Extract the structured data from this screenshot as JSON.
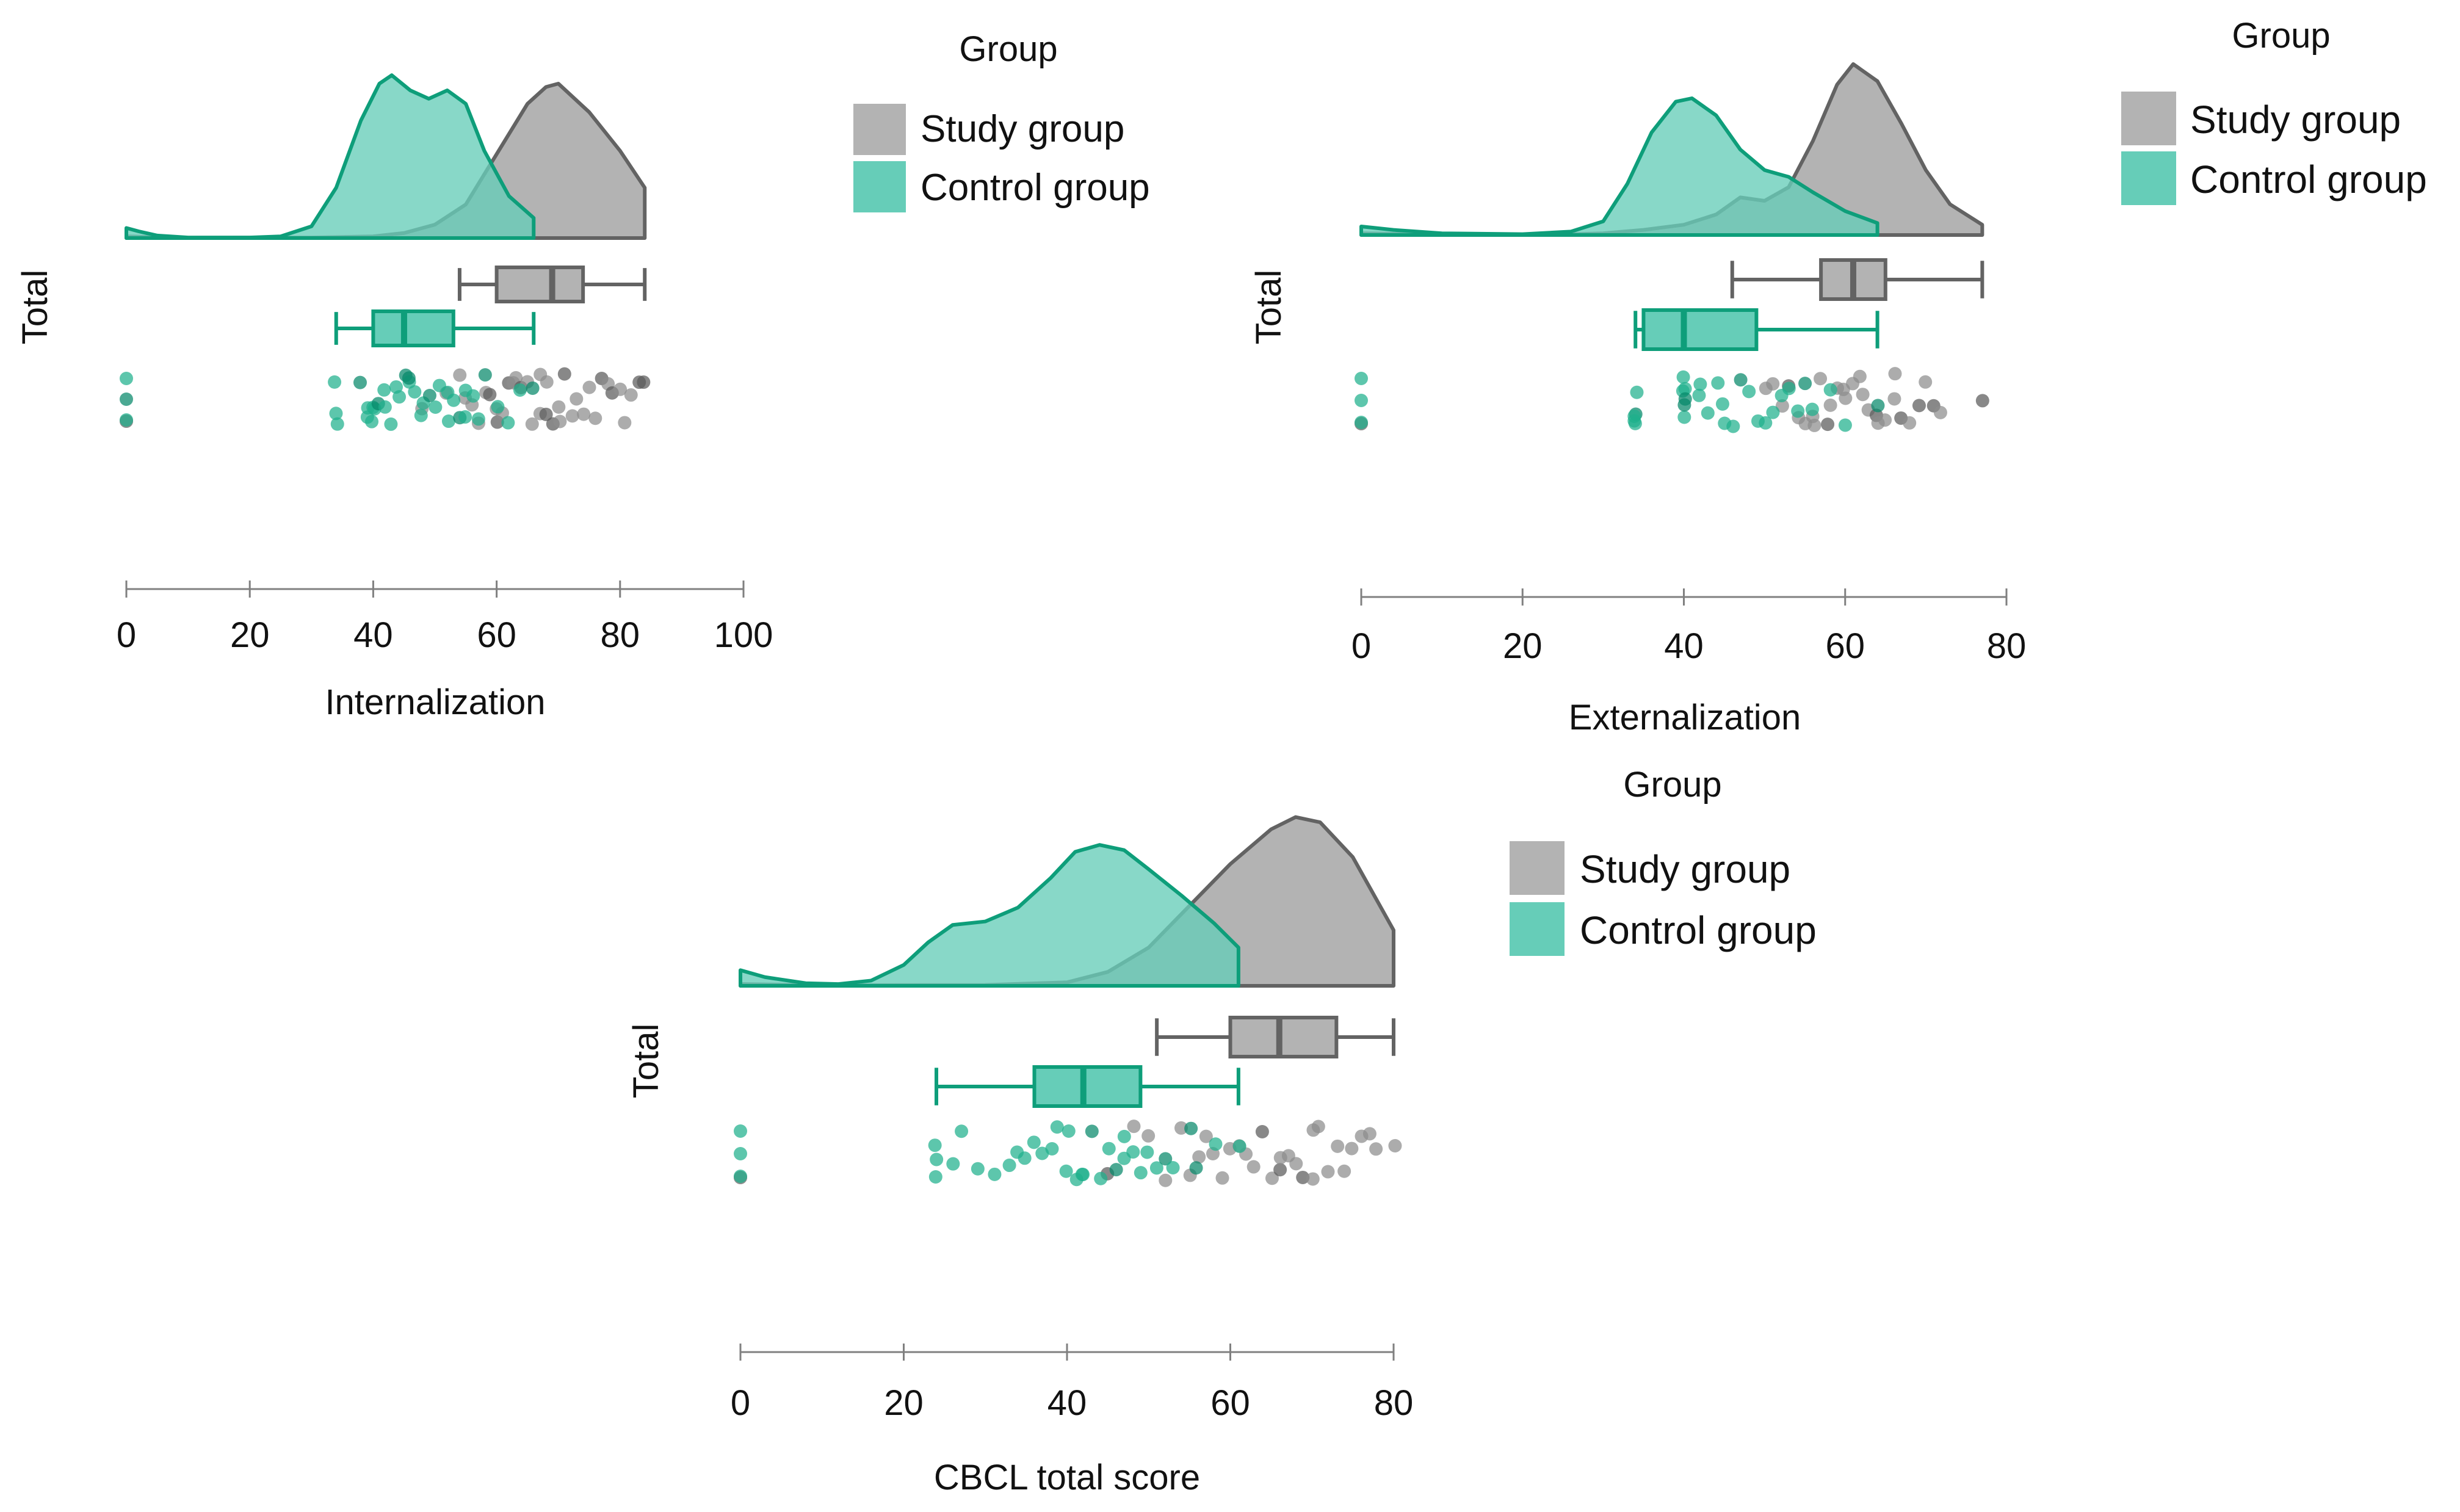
{
  "colors": {
    "study": "#b3b3b3",
    "study_line": "#636363",
    "study_point": "#8c8c8c",
    "study_point_dark": "#5a5a5a",
    "control": "#66cdb8",
    "control_line": "#0e9e7a",
    "control_point": "#1fb08c",
    "control_point_dark": "#05886a",
    "axis": "#808080",
    "text": "#111111"
  },
  "chart_data": [
    {
      "type": "raincloud",
      "id": "internalization",
      "xlabel": "Internalization",
      "ylabel": "Total",
      "xlim": [
        0,
        100
      ],
      "xticks": [
        0,
        20,
        40,
        60,
        80,
        100
      ],
      "legend": {
        "title": "Group",
        "placement": "right",
        "entries": [
          "Study group",
          "Control group"
        ]
      },
      "series": [
        {
          "name": "Study group",
          "density": [
            [
              0,
              0.01
            ],
            [
              5,
              0.005
            ],
            [
              10,
              0.002
            ],
            [
              30,
              0.003
            ],
            [
              40,
              0.01
            ],
            [
              45,
              0.03
            ],
            [
              50,
              0.08
            ],
            [
              55,
              0.2
            ],
            [
              60,
              0.5
            ],
            [
              65,
              0.8
            ],
            [
              68,
              0.9
            ],
            [
              70,
              0.92
            ],
            [
              75,
              0.75
            ],
            [
              80,
              0.52
            ],
            [
              84,
              0.3
            ]
          ],
          "range": [
            0,
            84
          ],
          "box": {
            "whisker_low": 54,
            "q1": 60,
            "median": 69,
            "q3": 74,
            "whisker_high": 84
          },
          "points": [
            0,
            0,
            0,
            48,
            52,
            54,
            55,
            56,
            57,
            58,
            59,
            60,
            60,
            61,
            62,
            63,
            63,
            64,
            65,
            66,
            67,
            67,
            68,
            68,
            69,
            70,
            70,
            71,
            72,
            73,
            74,
            75,
            76,
            77,
            78,
            79,
            80,
            81,
            82,
            83,
            84
          ]
        },
        {
          "name": "Control group",
          "density": [
            [
              0,
              0.06
            ],
            [
              2,
              0.04
            ],
            [
              5,
              0.015
            ],
            [
              10,
              0.003
            ],
            [
              20,
              0.003
            ],
            [
              25,
              0.01
            ],
            [
              30,
              0.07
            ],
            [
              34,
              0.3
            ],
            [
              38,
              0.7
            ],
            [
              41,
              0.92
            ],
            [
              43,
              0.97
            ],
            [
              46,
              0.88
            ],
            [
              49,
              0.83
            ],
            [
              52,
              0.88
            ],
            [
              55,
              0.8
            ],
            [
              58,
              0.52
            ],
            [
              62,
              0.25
            ],
            [
              66,
              0.12
            ]
          ],
          "range": [
            0,
            66
          ],
          "box": {
            "whisker_low": 34,
            "q1": 40,
            "median": 45,
            "q3": 53,
            "whisker_high": 66
          },
          "points": [
            0,
            0,
            0,
            34,
            34,
            34,
            38,
            39,
            39,
            40,
            40,
            40,
            41,
            42,
            42,
            43,
            44,
            44,
            45,
            46,
            46,
            47,
            48,
            48,
            49,
            50,
            51,
            52,
            52,
            53,
            54,
            55,
            55,
            56,
            57,
            58,
            60,
            62,
            64,
            66
          ]
        }
      ]
    },
    {
      "type": "raincloud",
      "id": "externalization",
      "xlabel": "Externalization",
      "ylabel": "Total",
      "xlim": [
        0,
        80
      ],
      "xticks": [
        0,
        20,
        40,
        60,
        80
      ],
      "legend": {
        "title": "Group",
        "placement": "right",
        "entries": [
          "Study group",
          "Control group"
        ]
      },
      "series": [
        {
          "name": "Study group",
          "density": [
            [
              0,
              0.01
            ],
            [
              10,
              0.003
            ],
            [
              25,
              0.003
            ],
            [
              30,
              0.01
            ],
            [
              35,
              0.03
            ],
            [
              40,
              0.06
            ],
            [
              44,
              0.12
            ],
            [
              47,
              0.22
            ],
            [
              50,
              0.2
            ],
            [
              53,
              0.28
            ],
            [
              56,
              0.55
            ],
            [
              59,
              0.88
            ],
            [
              61,
              1.0
            ],
            [
              64,
              0.9
            ],
            [
              67,
              0.65
            ],
            [
              70,
              0.38
            ],
            [
              73,
              0.18
            ],
            [
              77,
              0.06
            ]
          ],
          "range": [
            0,
            77
          ],
          "box": {
            "whisker_low": 46,
            "q1": 57,
            "median": 61,
            "q3": 65,
            "whisker_high": 77
          },
          "points": [
            0,
            0,
            0,
            50,
            51,
            52,
            53,
            54,
            55,
            56,
            56,
            57,
            58,
            58,
            59,
            60,
            60,
            61,
            62,
            62,
            63,
            64,
            64,
            65,
            66,
            66,
            67,
            68,
            69,
            70,
            71,
            72,
            77
          ]
        },
        {
          "name": "Control group",
          "density": [
            [
              0,
              0.05
            ],
            [
              4,
              0.03
            ],
            [
              10,
              0.01
            ],
            [
              20,
              0.005
            ],
            [
              26,
              0.02
            ],
            [
              30,
              0.08
            ],
            [
              33,
              0.3
            ],
            [
              36,
              0.6
            ],
            [
              39,
              0.78
            ],
            [
              41,
              0.8
            ],
            [
              44,
              0.7
            ],
            [
              47,
              0.5
            ],
            [
              50,
              0.38
            ],
            [
              53,
              0.34
            ],
            [
              56,
              0.25
            ],
            [
              60,
              0.14
            ],
            [
              64,
              0.07
            ]
          ],
          "range": [
            0,
            64
          ],
          "box": {
            "whisker_low": 34,
            "q1": 35,
            "median": 40,
            "q3": 49,
            "whisker_high": 64
          },
          "points": [
            0,
            0,
            0,
            34,
            34,
            34,
            34,
            34,
            40,
            40,
            40,
            40,
            40,
            40,
            42,
            42,
            43,
            44,
            45,
            45,
            46,
            47,
            48,
            49,
            50,
            51,
            52,
            53,
            54,
            55,
            56,
            58,
            60,
            64
          ]
        }
      ]
    },
    {
      "type": "raincloud",
      "id": "cbcl_total",
      "xlabel": "CBCL total score",
      "ylabel": "Total",
      "xlim": [
        0,
        80
      ],
      "xticks": [
        0,
        20,
        40,
        60,
        80
      ],
      "legend": {
        "title": "Group",
        "placement": "right",
        "entries": [
          "Study group",
          "Control group"
        ]
      },
      "series": [
        {
          "name": "Study group",
          "density": [
            [
              0,
              0.01
            ],
            [
              10,
              0.003
            ],
            [
              30,
              0.005
            ],
            [
              40,
              0.02
            ],
            [
              45,
              0.08
            ],
            [
              50,
              0.22
            ],
            [
              55,
              0.46
            ],
            [
              60,
              0.7
            ],
            [
              65,
              0.9
            ],
            [
              68,
              0.97
            ],
            [
              71,
              0.94
            ],
            [
              75,
              0.74
            ],
            [
              80,
              0.32
            ]
          ],
          "range": [
            0,
            80
          ],
          "box": {
            "whisker_low": 51,
            "q1": 60,
            "median": 66,
            "q3": 73,
            "whisker_high": 80
          },
          "points": [
            0,
            0,
            0,
            45,
            48,
            50,
            52,
            54,
            55,
            56,
            57,
            58,
            59,
            60,
            61,
            62,
            63,
            64,
            65,
            66,
            66,
            67,
            68,
            69,
            70,
            70,
            71,
            72,
            73,
            74,
            75,
            76,
            77,
            78,
            80
          ]
        },
        {
          "name": "Control group",
          "density": [
            [
              0,
              0.09
            ],
            [
              3,
              0.05
            ],
            [
              8,
              0.015
            ],
            [
              12,
              0.01
            ],
            [
              16,
              0.03
            ],
            [
              20,
              0.12
            ],
            [
              23,
              0.25
            ],
            [
              26,
              0.35
            ],
            [
              30,
              0.37
            ],
            [
              34,
              0.45
            ],
            [
              38,
              0.62
            ],
            [
              41,
              0.77
            ],
            [
              44,
              0.81
            ],
            [
              47,
              0.78
            ],
            [
              50,
              0.67
            ],
            [
              54,
              0.52
            ],
            [
              58,
              0.36
            ],
            [
              61,
              0.22
            ]
          ],
          "range": [
            0,
            61
          ],
          "box": {
            "whisker_low": 24,
            "q1": 36,
            "median": 42,
            "q3": 49,
            "whisker_high": 61
          },
          "points": [
            0,
            0,
            0,
            24,
            24,
            24,
            26,
            27,
            29,
            31,
            33,
            34,
            35,
            36,
            37,
            38,
            39,
            40,
            40,
            41,
            42,
            42,
            43,
            44,
            45,
            46,
            47,
            47,
            48,
            49,
            50,
            51,
            52,
            53,
            55,
            56,
            58,
            61
          ]
        }
      ]
    }
  ]
}
